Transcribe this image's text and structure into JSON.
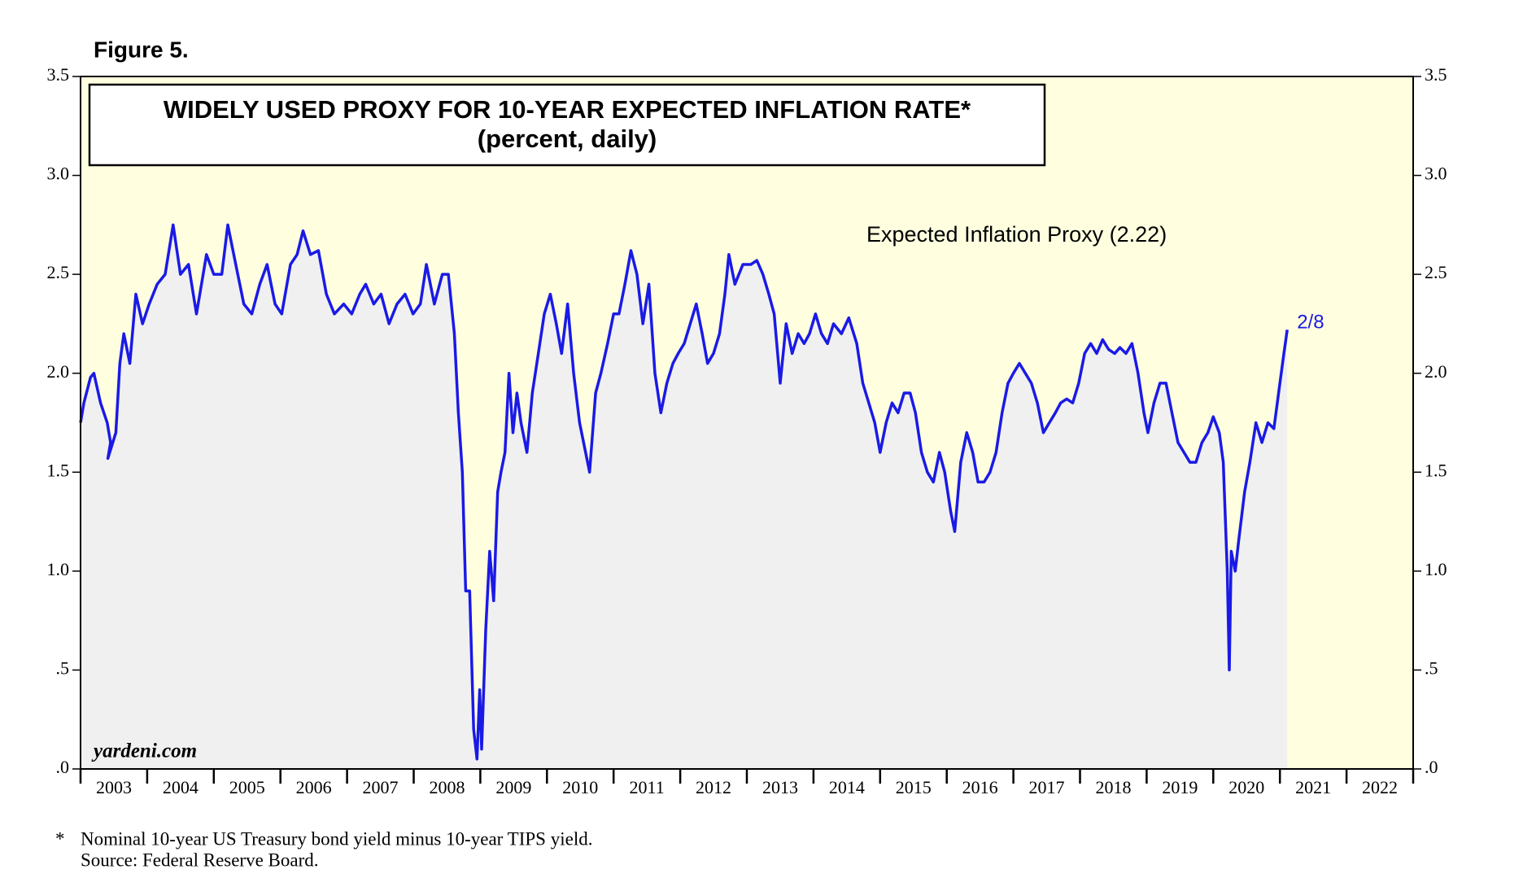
{
  "chart_data": {
    "type": "area-line",
    "figure_label": "Figure 5.",
    "title": "WIDELY USED PROXY FOR 10-YEAR EXPECTED INFLATION RATE*",
    "subtitle": "(percent, daily)",
    "watermark": "yardeni.com",
    "annotation": "2/8",
    "footnotes": [
      "*",
      "Nominal 10-year US Treasury bond yield minus 10-year TIPS yield.",
      "Source: Federal Reserve Board."
    ],
    "background_color": "#ffffe0",
    "area_color": "#f0f0f0",
    "xlim": [
      2003,
      2023
    ],
    "xticks": [
      2003,
      2004,
      2005,
      2006,
      2007,
      2008,
      2009,
      2010,
      2011,
      2012,
      2013,
      2014,
      2015,
      2016,
      2017,
      2018,
      2019,
      2020,
      2021,
      2022
    ],
    "ylim": [
      0,
      3.5
    ],
    "yticks": [
      {
        "value": 0,
        "label": ".0"
      },
      {
        "value": 0.5,
        "label": ".5"
      },
      {
        "value": 1,
        "label": "1.0"
      },
      {
        "value": 1.5,
        "label": "1.5"
      },
      {
        "value": 2,
        "label": "2.0"
      },
      {
        "value": 2.5,
        "label": "2.5"
      },
      {
        "value": 3,
        "label": "3.0"
      },
      {
        "value": 3.5,
        "label": "3.5"
      }
    ],
    "x": [
      2003.0,
      2003.05,
      2003.15,
      2003.2,
      2003.3,
      2003.4,
      2003.45,
      2003.41,
      2003.53,
      2003.59,
      2003.65,
      2003.74,
      2003.83,
      2003.93,
      2004.03,
      2004.15,
      2004.27,
      2004.39,
      2004.5,
      2004.62,
      2004.74,
      2004.89,
      2005.0,
      2005.12,
      2005.21,
      2005.33,
      2005.45,
      2005.57,
      2005.69,
      2005.8,
      2005.92,
      2006.02,
      2006.15,
      2006.25,
      2006.34,
      2006.45,
      2006.57,
      2006.69,
      2006.81,
      2006.95,
      2007.07,
      2007.19,
      2007.28,
      2007.4,
      2007.51,
      2007.63,
      2007.75,
      2007.87,
      2007.99,
      2008.1,
      2008.19,
      2008.31,
      2008.43,
      2008.52,
      2008.61,
      2008.67,
      2008.73,
      2008.78,
      2008.84,
      2008.9,
      2008.95,
      2008.99,
      2009.02,
      2009.08,
      2009.14,
      2009.2,
      2009.26,
      2009.31,
      2009.37,
      2009.43,
      2009.49,
      2009.55,
      2009.61,
      2009.7,
      2009.78,
      2009.87,
      2009.96,
      2010.05,
      2010.14,
      2010.22,
      2010.31,
      2010.4,
      2010.49,
      2010.58,
      2010.64,
      2010.73,
      2010.81,
      2010.91,
      2011.0,
      2011.08,
      2011.17,
      2011.26,
      2011.35,
      2011.44,
      2011.53,
      2011.62,
      2011.71,
      2011.8,
      2011.89,
      2011.97,
      2012.06,
      2012.15,
      2012.24,
      2012.33,
      2012.41,
      2012.5,
      2012.59,
      2012.67,
      2012.73,
      2012.82,
      2012.94,
      2013.06,
      2013.15,
      2013.24,
      2013.33,
      2013.41,
      2013.5,
      2013.59,
      2013.68,
      2013.77,
      2013.86,
      2013.94,
      2014.03,
      2014.12,
      2014.21,
      2014.3,
      2014.42,
      2014.53,
      2014.65,
      2014.74,
      2014.83,
      2014.92,
      2015.0,
      2015.09,
      2015.18,
      2015.27,
      2015.36,
      2015.45,
      2015.53,
      2015.62,
      2015.71,
      2015.8,
      2015.89,
      2015.97,
      2016.06,
      2016.12,
      2016.21,
      2016.3,
      2016.39,
      2016.47,
      2016.56,
      2016.65,
      2016.74,
      2016.83,
      2016.92,
      2017.0,
      2017.09,
      2017.18,
      2017.27,
      2017.36,
      2017.45,
      2017.54,
      2017.63,
      2017.71,
      2017.8,
      2017.89,
      2017.98,
      2018.07,
      2018.16,
      2018.25,
      2018.34,
      2018.43,
      2018.52,
      2018.6,
      2018.69,
      2018.78,
      2018.87,
      2018.96,
      2019.02,
      2019.11,
      2019.2,
      2019.29,
      2019.38,
      2019.47,
      2019.56,
      2019.65,
      2019.74,
      2019.83,
      2019.92,
      2020.0,
      2020.09,
      2020.15,
      2020.21,
      2020.24,
      2020.27,
      2020.33,
      2020.38,
      2020.47,
      2020.55,
      2020.64,
      2020.73,
      2020.82,
      2020.91,
      2021.0,
      2021.06,
      2021.11
    ],
    "series": [
      {
        "name": "Expected Inflation Proxy (2.22)",
        "color": "#1a1ae6",
        "values": [
          1.75,
          1.85,
          1.98,
          2.0,
          1.85,
          1.75,
          1.65,
          1.57,
          1.7,
          2.05,
          2.2,
          2.05,
          2.4,
          2.25,
          2.35,
          2.45,
          2.5,
          2.75,
          2.5,
          2.55,
          2.3,
          2.6,
          2.5,
          2.5,
          2.75,
          2.55,
          2.35,
          2.3,
          2.45,
          2.55,
          2.35,
          2.3,
          2.55,
          2.6,
          2.72,
          2.6,
          2.62,
          2.4,
          2.3,
          2.35,
          2.3,
          2.4,
          2.45,
          2.35,
          2.4,
          2.25,
          2.35,
          2.4,
          2.3,
          2.35,
          2.55,
          2.35,
          2.5,
          2.5,
          2.2,
          1.8,
          1.5,
          0.9,
          0.9,
          0.2,
          0.05,
          0.4,
          0.1,
          0.7,
          1.1,
          0.85,
          1.4,
          1.5,
          1.6,
          2.0,
          1.7,
          1.9,
          1.75,
          1.6,
          1.9,
          2.1,
          2.3,
          2.4,
          2.25,
          2.1,
          2.35,
          2.0,
          1.75,
          1.6,
          1.5,
          1.9,
          2.0,
          2.15,
          2.3,
          2.3,
          2.45,
          2.62,
          2.5,
          2.25,
          2.45,
          2.0,
          1.8,
          1.95,
          2.05,
          2.1,
          2.15,
          2.25,
          2.35,
          2.2,
          2.05,
          2.1,
          2.2,
          2.4,
          2.6,
          2.45,
          2.55,
          2.55,
          2.57,
          2.5,
          2.4,
          2.3,
          1.95,
          2.25,
          2.1,
          2.2,
          2.15,
          2.2,
          2.3,
          2.2,
          2.15,
          2.25,
          2.2,
          2.28,
          2.15,
          1.95,
          1.85,
          1.75,
          1.6,
          1.75,
          1.85,
          1.8,
          1.9,
          1.9,
          1.8,
          1.6,
          1.5,
          1.45,
          1.6,
          1.5,
          1.3,
          1.2,
          1.55,
          1.7,
          1.6,
          1.45,
          1.45,
          1.5,
          1.6,
          1.8,
          1.95,
          2.0,
          2.05,
          2.0,
          1.95,
          1.85,
          1.7,
          1.75,
          1.8,
          1.85,
          1.87,
          1.85,
          1.95,
          2.1,
          2.15,
          2.1,
          2.17,
          2.12,
          2.1,
          2.13,
          2.1,
          2.15,
          2.0,
          1.8,
          1.7,
          1.85,
          1.95,
          1.95,
          1.8,
          1.65,
          1.6,
          1.55,
          1.55,
          1.65,
          1.7,
          1.78,
          1.7,
          1.55,
          1.0,
          0.5,
          1.1,
          1.0,
          1.15,
          1.4,
          1.55,
          1.75,
          1.65,
          1.75,
          1.72,
          1.95,
          2.1,
          2.22
        ]
      }
    ]
  }
}
